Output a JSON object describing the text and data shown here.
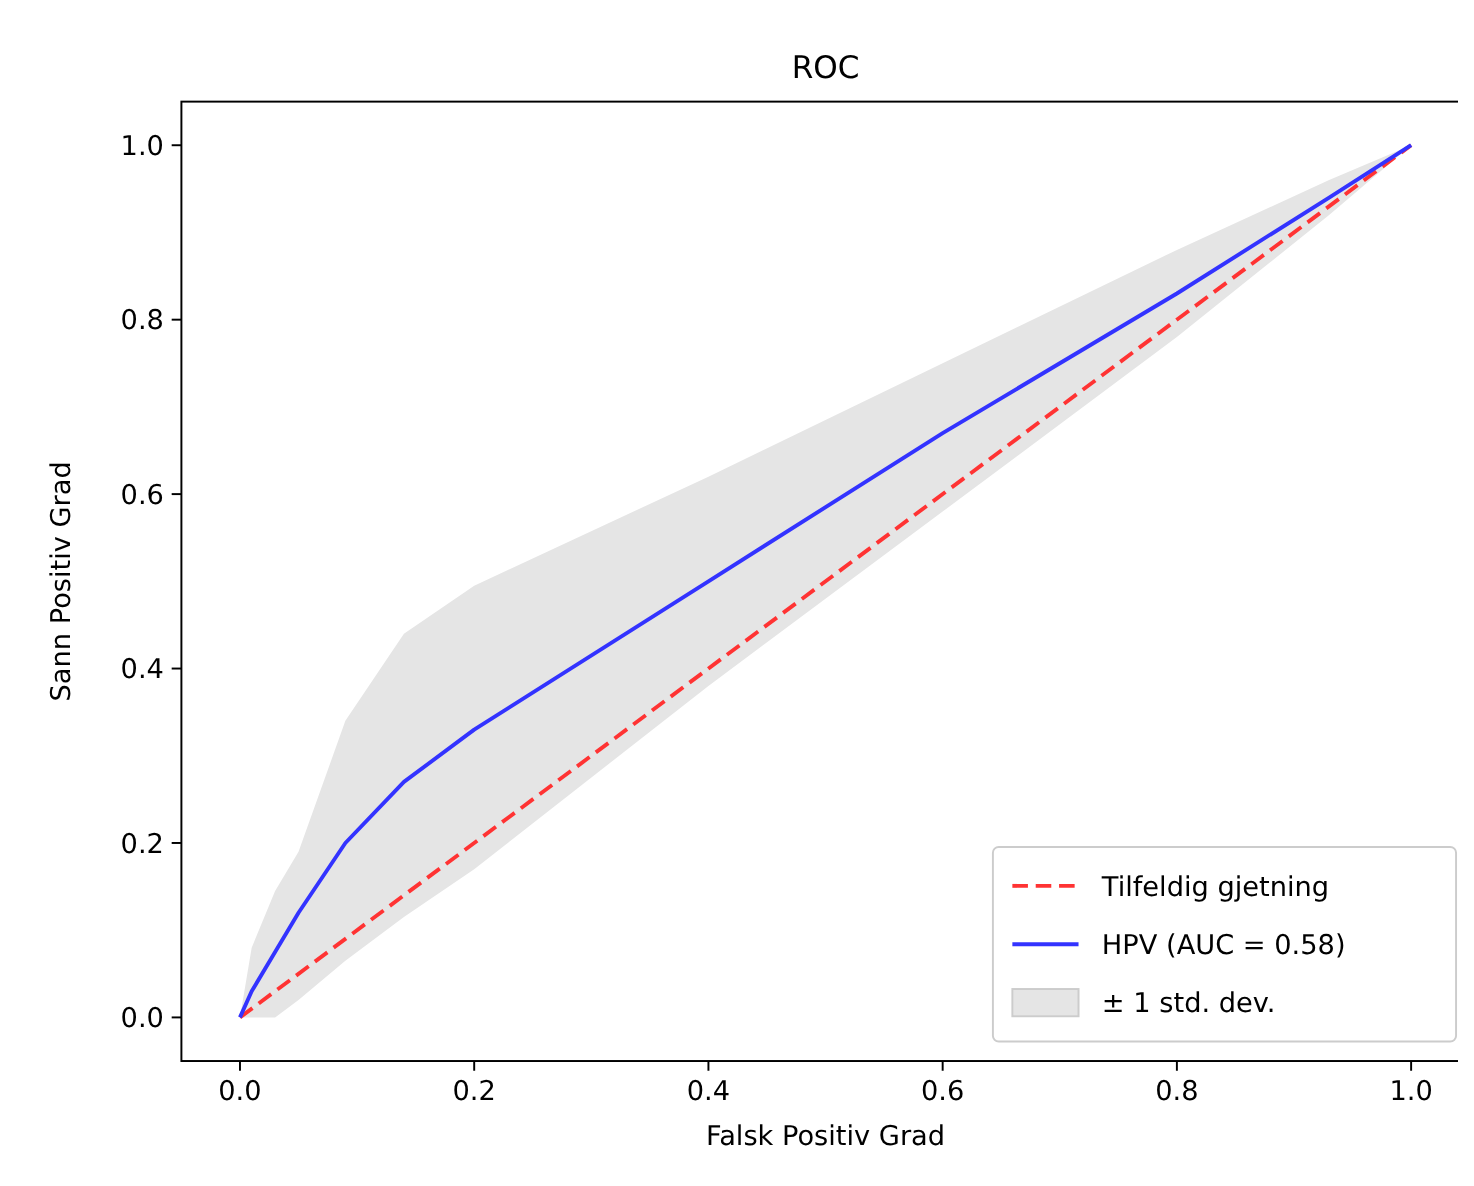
{
  "chart_data": {
    "type": "line",
    "title": "ROC",
    "xlabel": "Falsk Positiv Grad",
    "ylabel": "Sann Positiv Grad",
    "xlim": [
      -0.05,
      1.05
    ],
    "ylim": [
      -0.05,
      1.05
    ],
    "xticks": [
      {
        "value": 0,
        "label": "0.0"
      },
      {
        "value": 0.2,
        "label": "0.2"
      },
      {
        "value": 0.4,
        "label": "0.4"
      },
      {
        "value": 0.6,
        "label": "0.6"
      },
      {
        "value": 0.8,
        "label": "0.8"
      },
      {
        "value": 1,
        "label": "1.0"
      }
    ],
    "yticks": [
      {
        "value": 0,
        "label": "0.0"
      },
      {
        "value": 0.2,
        "label": "0.2"
      },
      {
        "value": 0.4,
        "label": "0.4"
      },
      {
        "value": 0.6,
        "label": "0.6"
      },
      {
        "value": 0.8,
        "label": "0.8"
      },
      {
        "value": 1,
        "label": "1.0"
      }
    ],
    "grid": false,
    "legend": "bottom right",
    "marker": "none",
    "annotations": [
      "± 1 std. dev."
    ],
    "series": [
      {
        "name": "Tilfeldig gjetning",
        "line_style": "dashed",
        "color": "#ff3333",
        "x": [
          0,
          1
        ],
        "values": [
          0,
          1
        ]
      },
      {
        "name": "HPV (AUC = 0.58)",
        "line_style": "solid",
        "color": "#3333ff",
        "x": [
          0,
          0.01,
          0.03,
          0.05,
          0.09,
          0.14,
          0.2,
          0.4,
          0.6,
          0.8,
          0.93,
          1
        ],
        "values": [
          0,
          0.03,
          0.075,
          0.12,
          0.2,
          0.27,
          0.33,
          0.5,
          0.67,
          0.83,
          0.94,
          1
        ],
        "lower": [
          0,
          0,
          0,
          0.02,
          0.065,
          0.115,
          0.17,
          0.38,
          0.58,
          0.78,
          0.92,
          1
        ],
        "upper": [
          0,
          0.08,
          0.145,
          0.19,
          0.34,
          0.44,
          0.495,
          0.62,
          0.75,
          0.88,
          0.96,
          1
        ]
      }
    ]
  }
}
